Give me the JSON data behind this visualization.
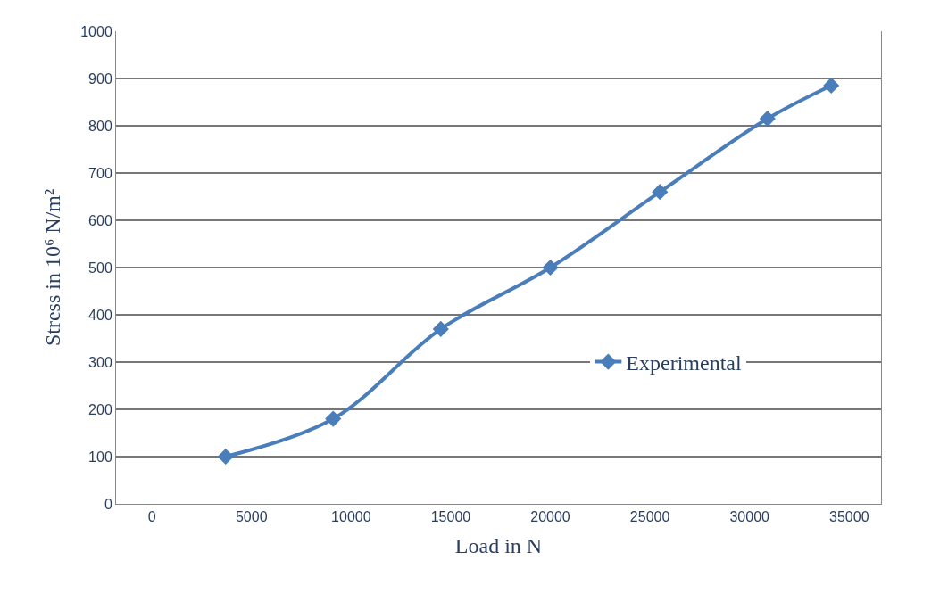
{
  "chart_data": {
    "type": "line",
    "xlabel": "Load in N",
    "ylabel": "Stress in 10⁶ N/m²",
    "x": [
      3700,
      9100,
      14500,
      20000,
      25500,
      30900,
      34100
    ],
    "series": [
      {
        "name": "Experimental",
        "color": "#4a7ebb",
        "values": [
          100,
          180,
          370,
          500,
          660,
          815,
          885
        ]
      }
    ],
    "xlim": [
      -1800,
      36600
    ],
    "xticks": [
      0,
      5000,
      10000,
      15000,
      20000,
      25000,
      30000,
      35000
    ],
    "ylim": [
      0,
      1000
    ],
    "yticks": [
      0,
      100,
      200,
      300,
      400,
      500,
      600,
      700,
      800,
      900,
      1000
    ],
    "grid": "y",
    "legend": "right",
    "marker": "diamond",
    "line_style": "solid"
  }
}
